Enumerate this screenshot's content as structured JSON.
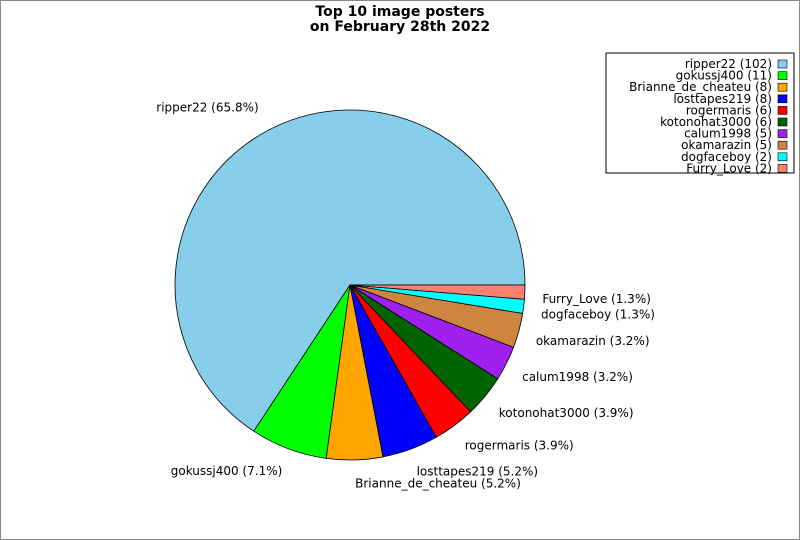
{
  "chart_data": {
    "type": "pie",
    "title": [
      "Top 10 image posters",
      "on February 28th 2022"
    ],
    "categories": [
      "ripper22",
      "gokussj400",
      "Brianne_de_cheateu",
      "losttapes219",
      "rogermaris",
      "kotonohat3000",
      "calum1998",
      "okamarazin",
      "dogfaceboy",
      "Furry_Love"
    ],
    "values": [
      65.8,
      7.1,
      5.2,
      5.2,
      3.9,
      3.9,
      3.2,
      3.2,
      1.3,
      1.3
    ],
    "value_labels": [
      "ripper22 (65.8%)",
      "gokussj400 (7.1%)",
      "Brianne_de_cheateu (5.2%)",
      "losttapes219 (5.2%)",
      "rogermaris (3.9%)",
      "kotonohat3000 (3.9%)",
      "calum1998 (3.2%)",
      "okamarazin (3.2%)",
      "dogfaceboy (1.3%)",
      "Furry_Love (1.3%)"
    ],
    "legend_labels": [
      "ripper22 (102)",
      "gokussj400 (11)",
      "Brianne_de_cheateu (8)",
      "losttapes219 (8)",
      "rogermaris (6)",
      "kotonohat3000 (6)",
      "calum1998 (5)",
      "okamarazin (5)",
      "dogfaceboy (2)",
      "Furry_Love (2)"
    ],
    "colors": [
      "#87ceeb",
      "#00ff00",
      "#ffa500",
      "#0000ff",
      "#ff0000",
      "#006400",
      "#a020f0",
      "#cd853f",
      "#00ffff",
      "#fa8072"
    ],
    "legend": "upper right"
  }
}
